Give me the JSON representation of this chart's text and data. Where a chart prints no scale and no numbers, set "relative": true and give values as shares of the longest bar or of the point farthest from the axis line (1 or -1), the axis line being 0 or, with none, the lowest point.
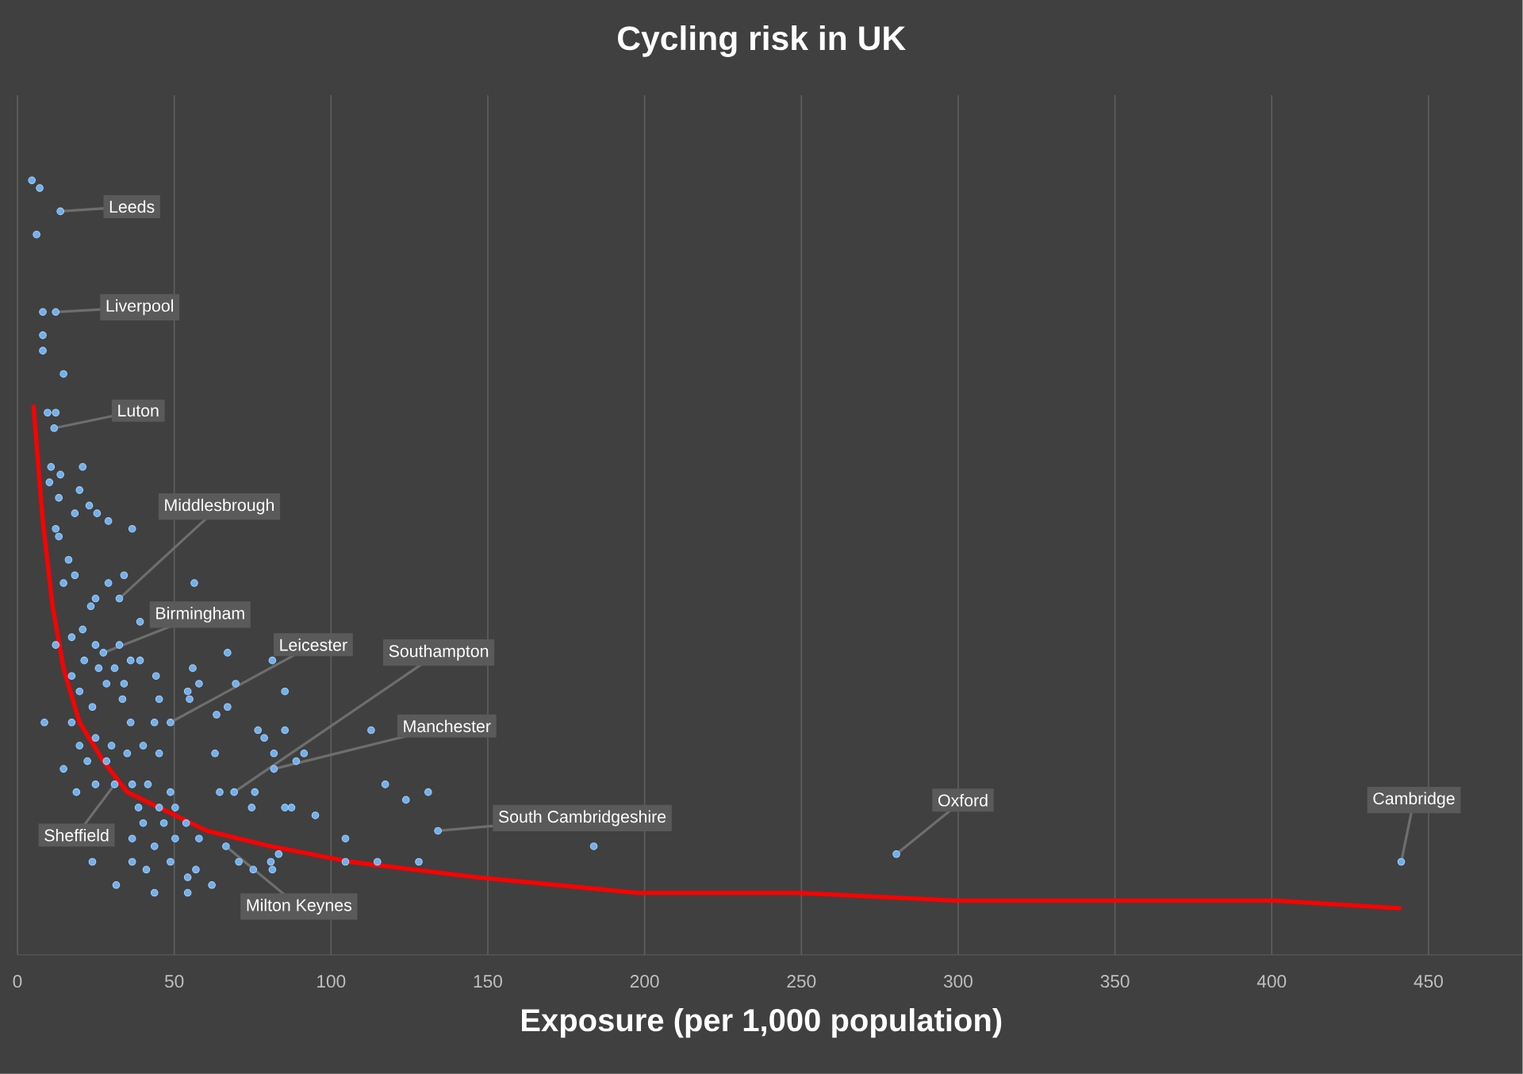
{
  "chart_data": {
    "type": "scatter",
    "title": "Cycling risk in UK",
    "xlabel": "Exposure (per 1,000 population)",
    "relative": true,
    "grid": true,
    "tick_labels": "x",
    "marker": "circle",
    "xlim": [
      0,
      480
    ],
    "xticks": [
      0,
      50,
      100,
      150,
      200,
      250,
      300,
      350,
      400,
      450
    ],
    "series": [
      {
        "color": "#6fb0f0",
        "x": [
          4.6,
          7.1,
          6.1,
          13.7,
          8.1,
          12.2,
          8.1,
          8.1,
          14.7,
          9.6,
          12.2,
          11.7,
          10.7,
          13.7,
          20.8,
          10.2,
          13.2,
          19.8,
          22.9,
          25.4,
          29.0,
          18.3,
          36.6,
          12.2,
          13.2,
          16.3,
          18.3,
          14.7,
          34.0,
          29.0,
          32.5,
          24.9,
          23.4,
          20.8,
          39.1,
          12.2,
          17.3,
          24.9,
          27.4,
          32.5,
          36.1,
          39.1,
          25.9,
          31.0,
          21.3,
          17.3,
          19.8,
          28.4,
          34.0,
          44.2,
          45.2,
          54.3,
          8.6,
          17.3,
          23.9,
          33.5,
          36.1,
          43.7,
          48.8,
          19.8,
          24.9,
          30.0,
          40.1,
          14.7,
          22.3,
          28.4,
          35.0,
          45.2,
          24.9,
          31.0,
          36.6,
          41.6,
          48.8,
          18.8,
          38.6,
          45.2,
          50.3,
          40.1,
          46.7,
          53.8,
          36.6,
          43.7,
          50.3,
          57.9,
          23.9,
          36.6,
          41.1,
          48.8,
          31.5,
          43.7,
          54.3,
          56.4,
          67.0,
          81.3,
          55.9,
          57.9,
          69.6,
          85.3,
          54.9,
          67.0,
          63.5,
          76.7,
          85.3,
          112.8,
          78.7,
          81.8,
          63.0,
          91.4,
          88.9,
          81.8,
          75.7,
          117.3,
          123.9,
          131.0,
          69.1,
          64.5,
          95.0,
          85.3,
          87.4,
          74.7,
          134.1,
          104.6,
          114.8,
          128.0,
          83.3,
          80.8,
          75.2,
          70.6,
          66.5,
          62.0,
          56.9,
          54.3,
          81.3,
          104.6,
          183.8,
          280.3,
          441.3
        ],
        "values": [
          1.0,
          0.99,
          0.93,
          0.96,
          0.83,
          0.83,
          0.8,
          0.78,
          0.75,
          0.7,
          0.7,
          0.68,
          0.63,
          0.62,
          0.63,
          0.61,
          0.59,
          0.6,
          0.58,
          0.57,
          0.56,
          0.57,
          0.55,
          0.55,
          0.54,
          0.51,
          0.49,
          0.48,
          0.49,
          0.48,
          0.46,
          0.46,
          0.45,
          0.42,
          0.43,
          0.4,
          0.41,
          0.4,
          0.39,
          0.4,
          0.38,
          0.38,
          0.37,
          0.37,
          0.38,
          0.36,
          0.34,
          0.35,
          0.35,
          0.36,
          0.33,
          0.34,
          0.3,
          0.3,
          0.32,
          0.33,
          0.3,
          0.3,
          0.3,
          0.27,
          0.28,
          0.27,
          0.27,
          0.24,
          0.25,
          0.25,
          0.26,
          0.26,
          0.22,
          0.22,
          0.22,
          0.22,
          0.21,
          0.21,
          0.19,
          0.19,
          0.19,
          0.17,
          0.17,
          0.17,
          0.15,
          0.14,
          0.15,
          0.15,
          0.12,
          0.12,
          0.11,
          0.12,
          0.09,
          0.08,
          0.08,
          0.48,
          0.39,
          0.38,
          0.37,
          0.35,
          0.35,
          0.34,
          0.33,
          0.32,
          0.31,
          0.29,
          0.29,
          0.29,
          0.28,
          0.26,
          0.26,
          0.26,
          0.25,
          0.24,
          0.21,
          0.22,
          0.2,
          0.21,
          0.21,
          0.21,
          0.18,
          0.19,
          0.19,
          0.19,
          0.16,
          0.12,
          0.12,
          0.12,
          0.13,
          0.12,
          0.11,
          0.12,
          0.14,
          0.09,
          0.11,
          0.1,
          0.11,
          0.15,
          0.14,
          0.13,
          0.12
        ]
      },
      {
        "type": "line",
        "color": "#ff0000",
        "marker": "none",
        "x": [
          5.1,
          8.1,
          11.2,
          14.7,
          19.8,
          27.4,
          35.0,
          45.2,
          60.4,
          80.8,
          106.1,
          146.8,
          197.6,
          248.4,
          299.1,
          349.9,
          400.7,
          441.3
        ],
        "values": [
          0.71,
          0.56,
          0.45,
          0.37,
          0.3,
          0.25,
          0.21,
          0.19,
          0.16,
          0.14,
          0.12,
          0.1,
          0.08,
          0.08,
          0.07,
          0.07,
          0.07,
          0.06
        ]
      }
    ],
    "annotations": [
      {
        "text": "Leeds",
        "x": 13.7,
        "y": 0.96
      },
      {
        "text": "Liverpool",
        "x": 12.2,
        "y": 0.83
      },
      {
        "text": "Luton",
        "x": 11.7,
        "y": 0.68
      },
      {
        "text": "Middlesbrough",
        "x": 32.5,
        "y": 0.46
      },
      {
        "text": "Birmingham",
        "x": 27.4,
        "y": 0.39
      },
      {
        "text": "Leicester",
        "x": 48.8,
        "y": 0.3
      },
      {
        "text": "Southampton",
        "x": 69.1,
        "y": 0.21
      },
      {
        "text": "Manchester",
        "x": 81.8,
        "y": 0.24
      },
      {
        "text": "South Cambridgeshire",
        "x": 134.1,
        "y": 0.16
      },
      {
        "text": "Oxford",
        "x": 280.3,
        "y": 0.13
      },
      {
        "text": "Cambridge",
        "x": 441.3,
        "y": 0.12
      },
      {
        "text": "Sheffield",
        "x": 31.0,
        "y": 0.22
      },
      {
        "text": "Milton Keynes",
        "x": 66.5,
        "y": 0.14
      }
    ]
  }
}
